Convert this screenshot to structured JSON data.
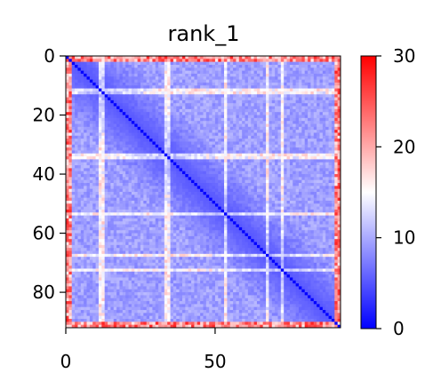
{
  "chart_data": {
    "type": "heatmap",
    "title": "rank_1",
    "xlabel": "",
    "ylabel": "",
    "matrix_size": 92,
    "xlim": [
      0,
      92
    ],
    "ylim": [
      92,
      0
    ],
    "x_ticks": [
      0,
      50
    ],
    "y_ticks": [
      0,
      20,
      40,
      60,
      80
    ],
    "colorbar": {
      "min": 0,
      "max": 30,
      "ticks": [
        0,
        10,
        20,
        30
      ],
      "colormap": "bwr",
      "colors": {
        "low": "#0000ff",
        "mid": "#ffffff",
        "high": "#ff0000"
      }
    },
    "pattern": {
      "diagonal_value": 0,
      "typical_offdiag_range": [
        5,
        11
      ],
      "light_bands": [
        11,
        12,
        33,
        34,
        53,
        67,
        72
      ],
      "high_edge_rows": [
        0,
        1,
        90,
        91
      ],
      "high_edge_value_max": 28
    }
  }
}
